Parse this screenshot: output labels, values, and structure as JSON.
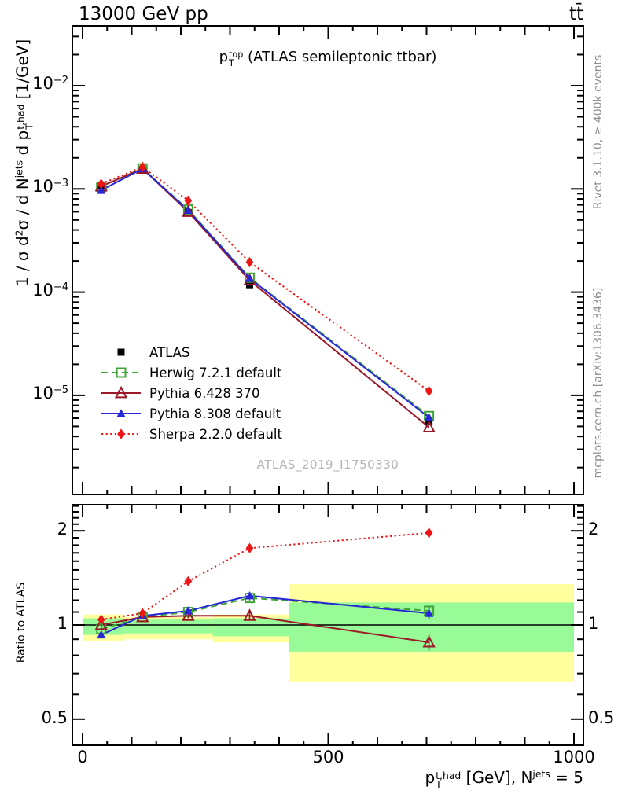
{
  "header": {
    "left": "13000 GeV pp",
    "right": "tt̄"
  },
  "side_labels": {
    "right_top": "Rivet 3.1.10, ≥ 400k events",
    "right_bottom": "mcplots.cern.ch [arXiv:1306.3436]",
    "color": "#8f8f8f"
  },
  "watermark": {
    "text": "ATLAS_2019_I1750330",
    "color": "#b5b5b5"
  },
  "xlabel_rich": [
    {
      "t": "p"
    },
    {
      "stk": [
        "t,had",
        "T"
      ]
    },
    {
      "t": " [GeV], N"
    },
    {
      "sup": "jets"
    },
    {
      "t": " = 5"
    }
  ],
  "chart_data": [
    {
      "id": "main",
      "type": "line",
      "yscale": "log",
      "title_rich": [
        {
          "t": "p"
        },
        {
          "stk": [
            "top",
            "T"
          ]
        },
        {
          "t": " (ATLAS semileptonic ttbar)"
        }
      ],
      "ylabel_rich": [
        {
          "t": "1 / σ d"
        },
        {
          "sup": "2"
        },
        {
          "t": "σ / d N"
        },
        {
          "sup": "jets"
        },
        {
          "t": " d p"
        },
        {
          "stk": [
            "t,had",
            "T"
          ]
        },
        {
          "t": " [1/GeV]"
        }
      ],
      "xlim": [
        -21,
        1019
      ],
      "ylim": [
        1.1e-06,
        0.038
      ],
      "x": [
        38,
        122,
        215,
        340,
        705
      ],
      "series": [
        {
          "name": "ATLAS",
          "color": "#000000",
          "marker": "square",
          "line": "none",
          "values": [
            0.00107,
            0.00155,
            0.00059,
            0.000118,
            5.6e-06
          ]
        },
        {
          "name": "Herwig 7.2.1 default",
          "color": "#3fa535",
          "marker": "square-open",
          "line": "dashed",
          "values": [
            0.00105,
            0.00158,
            0.00063,
            0.000138,
            6.3e-06
          ]
        },
        {
          "name": "Pythia 6.428 370",
          "color": "#9c1828",
          "marker": "triangle-open",
          "line": "solid",
          "values": [
            0.00106,
            0.00157,
            0.0006,
            0.00013,
            4.9e-06
          ]
        },
        {
          "name": "Pythia 8.308 default",
          "color": "#2727d8",
          "marker": "triangle",
          "line": "solid",
          "values": [
            0.00097,
            0.00157,
            0.00062,
            0.000136,
            6.1e-06
          ]
        },
        {
          "name": "Sherpa 2.2.0 default",
          "color": "#ed1515",
          "marker": "diamond",
          "line": "dotted",
          "values": [
            0.00112,
            0.00163,
            0.00077,
            0.000195,
            1.1e-05
          ]
        }
      ],
      "yticks": [
        {
          "exp": "−2",
          "v": 0.01
        },
        {
          "exp": "−3",
          "v": 0.001
        },
        {
          "exp": "−4",
          "v": 0.0001
        },
        {
          "exp": "−5",
          "v": 1e-05
        }
      ],
      "xticks": [
        {
          "label": "0",
          "v": 0
        },
        {
          "label": "500",
          "v": 500
        },
        {
          "label": "1000",
          "v": 1000
        }
      ]
    },
    {
      "id": "ratio",
      "type": "line",
      "yscale": "log",
      "ylabel": "Ratio to ATLAS",
      "xlim": [
        -21,
        1019
      ],
      "ylim": [
        0.41,
        2.42
      ],
      "reference_line": 1,
      "x": [
        38,
        122,
        215,
        340,
        705
      ],
      "series": [
        {
          "name": "Herwig 7.2.1 default",
          "color": "#3fa535",
          "marker": "square-open",
          "line": "dashed",
          "values": [
            0.97,
            1.06,
            1.1,
            1.22,
            1.11
          ],
          "yerr": [
            0.02,
            0.015,
            0.02,
            0.03,
            0.05
          ]
        },
        {
          "name": "Pythia 6.428 370",
          "color": "#9c1828",
          "marker": "triangle-open",
          "line": "solid",
          "values": [
            1.0,
            1.06,
            1.07,
            1.07,
            0.88
          ],
          "yerr": [
            0.02,
            0.015,
            0.02,
            0.03,
            0.05
          ]
        },
        {
          "name": "Pythia 8.308 default",
          "color": "#2727d8",
          "marker": "triangle",
          "line": "solid",
          "values": [
            0.93,
            1.07,
            1.11,
            1.24,
            1.09
          ],
          "yerr": [
            0.02,
            0.015,
            0.02,
            0.03,
            0.05
          ]
        },
        {
          "name": "Sherpa 2.2.0 default",
          "color": "#ed1515",
          "marker": "diamond",
          "line": "dotted",
          "values": [
            1.04,
            1.09,
            1.38,
            1.76,
            1.97
          ],
          "yerr": [
            0.025,
            0.02,
            0.03,
            0.04,
            0.07
          ]
        }
      ],
      "yticks": [
        {
          "label": "2",
          "v": 2
        },
        {
          "label": "1",
          "v": 1
        },
        {
          "label": "0.5",
          "v": 0.5
        }
      ],
      "uncertainty_bands": {
        "outer_color": "#ffff9e",
        "inner_color": "#98fb98",
        "bins": [
          {
            "x0": 0,
            "x1": 85,
            "outer": [
              0.89,
              1.08
            ],
            "inner": [
              0.93,
              1.05
            ]
          },
          {
            "x0": 85,
            "x1": 165,
            "outer": [
              0.9,
              1.06
            ],
            "inner": [
              0.94,
              1.04
            ]
          },
          {
            "x0": 165,
            "x1": 265,
            "outer": [
              0.9,
              1.06
            ],
            "inner": [
              0.94,
              1.04
            ]
          },
          {
            "x0": 265,
            "x1": 420,
            "outer": [
              0.88,
              1.08
            ],
            "inner": [
              0.92,
              1.05
            ]
          },
          {
            "x0": 420,
            "x1": 1000,
            "outer": [
              0.66,
              1.35
            ],
            "inner": [
              0.82,
              1.18
            ]
          }
        ]
      }
    }
  ]
}
